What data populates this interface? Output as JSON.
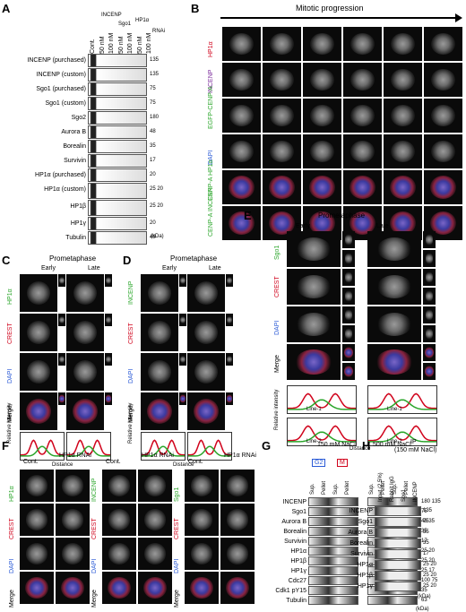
{
  "panels": {
    "A": "A",
    "B": "B",
    "C": "C",
    "D": "D",
    "E": "E",
    "F": "F",
    "G": "G",
    "H": "H"
  },
  "panelA": {
    "header_groups": [
      "INCENP",
      "Sgo1",
      "HP1α",
      "RNAi"
    ],
    "lane_labels": [
      "Cont.",
      "50 nM",
      "100 nM",
      "50 nM",
      "100 nM",
      "50 nM",
      "100 nM"
    ],
    "rows": [
      {
        "label": "INCENP (purchased)",
        "mw": "135"
      },
      {
        "label": "INCENP (custom)",
        "mw": "135"
      },
      {
        "label": "Sgo1 (purchased)",
        "mw": "75"
      },
      {
        "label": "Sgo1 (custom)",
        "mw": "75"
      },
      {
        "label": "Sgo2",
        "mw": "180"
      },
      {
        "label": "Aurora B",
        "mw": "48"
      },
      {
        "label": "Borealin",
        "mw": "35"
      },
      {
        "label": "Survivin",
        "mw": "17"
      },
      {
        "label": "HP1α (purchased)",
        "mw": "20"
      },
      {
        "label": "HP1α (custom)",
        "mw": "25 20"
      },
      {
        "label": "HP1β",
        "mw": "25 20"
      },
      {
        "label": "HP1γ",
        "mw": "20"
      },
      {
        "label": "Tubulin",
        "mw": "48"
      }
    ],
    "unit": "(kDa)"
  },
  "panelB": {
    "title": "Mitotic progression",
    "row_labels": [
      "HP1α",
      "INCENP",
      "EGFP-CENP-A",
      "DAPI",
      "CENP-A HP1α",
      "CENP-A INCENP"
    ]
  },
  "panelC": {
    "stage": "Prometaphase",
    "early": "Early",
    "late": "Late",
    "row_labels": [
      "HP1α",
      "CREST",
      "DAPI",
      "Merge"
    ],
    "ylabel": "Relative intensity",
    "xlabel": "Distance"
  },
  "panelD": {
    "stage": "Prometaphase",
    "early": "Early",
    "late": "Late",
    "row_labels": [
      "INCENP",
      "CREST",
      "DAPI",
      "Merge"
    ],
    "ylabel": "Relative intensity",
    "xlabel": "Distance"
  },
  "panelE": {
    "stage": "Prometaphase",
    "early": "Early",
    "late": "Late",
    "row_labels": [
      "Sgo1",
      "CREST",
      "DAPI",
      "Merge"
    ],
    "line1": "Line-1",
    "line2": "Line-2",
    "ylabel": "Relative intensity",
    "xlabel": "Distance"
  },
  "panelF": {
    "groups": [
      {
        "marker": "HP1α",
        "cols": [
          "Cont.",
          "HP1α RNAi"
        ]
      },
      {
        "marker": "INCENP",
        "cols": [
          "Cont.",
          "HP1α RNAi"
        ]
      },
      {
        "marker": "Sgo1",
        "cols": [
          "Cont.",
          "HP1α RNAi"
        ]
      }
    ],
    "row_labels": [
      "CREST",
      "DAPI",
      "Merge"
    ]
  },
  "panelG": {
    "salt": [
      "150 mM NaCl",
      "500 mM NaCl"
    ],
    "phases": [
      "G2",
      "M"
    ],
    "fractions": [
      "Sup.",
      "Pellet",
      "Sup.",
      "Pellet"
    ],
    "rows": [
      {
        "label": "INCENP",
        "mw": "180 135"
      },
      {
        "label": "Sgo1",
        "mw": "75"
      },
      {
        "label": "Aurora B",
        "mw": "48 35"
      },
      {
        "label": "Borealin",
        "mw": "35"
      },
      {
        "label": "Survivin",
        "mw": "17"
      },
      {
        "label": "HP1α",
        "mw": "25 20"
      },
      {
        "label": "HP1β",
        "mw": "25 20"
      },
      {
        "label": "HP1γ",
        "mw": "25 17"
      },
      {
        "label": "Cdc27",
        "mw": "100 75"
      },
      {
        "label": "Cdk1 pY15",
        "mw": "35"
      },
      {
        "label": "Tubulin",
        "mw": "63"
      }
    ],
    "unit": "(kDa)",
    "asterisk": "*"
  },
  "panelH": {
    "ip": "IP",
    "ip_cond": "(150 mM NaCl)",
    "cols": [
      "Input (2.5%)",
      "Rabbit IgG",
      "Sgo1",
      "INCENP"
    ],
    "phases": [
      "G2",
      "M"
    ],
    "rows": [
      {
        "label": "INCENP",
        "mw": "135"
      },
      {
        "label": "Sgo1",
        "mw": "75"
      },
      {
        "label": "Aurora B",
        "mw": "35"
      },
      {
        "label": "Borealin",
        "mw": "35"
      },
      {
        "label": "Survivin",
        "mw": "17"
      },
      {
        "label": "HP1α",
        "mw": "25 20"
      },
      {
        "label": "HP1β",
        "mw": "25 20"
      },
      {
        "label": "HP1γ",
        "mw": "25 20"
      }
    ],
    "unit": "(kDa)"
  }
}
